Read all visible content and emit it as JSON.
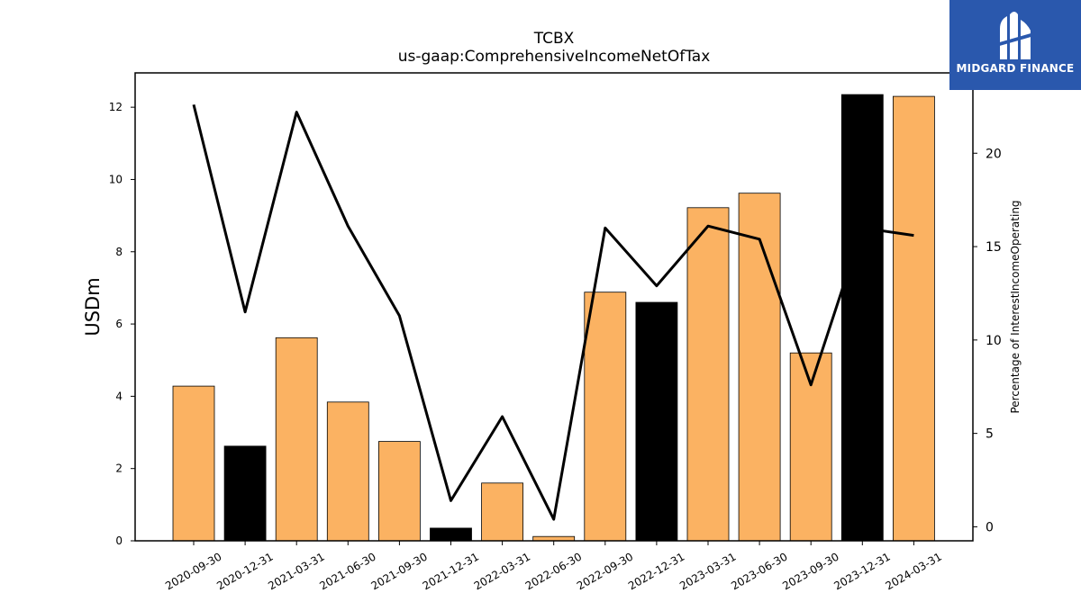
{
  "brand": {
    "name": "MIDGARD FINANCE",
    "bg_color": "#2a58ad",
    "icon": "midgard-logo-icon"
  },
  "chart_data": {
    "type": "bar",
    "title": "TCBX",
    "subtitle": "us-gaap:ComprehensiveIncomeNetOfTax",
    "ylabel": "USDm",
    "y2label": "Percentage of InterestIncomeOperating",
    "categories": [
      "2020-09-30",
      "2020-12-31",
      "2021-03-31",
      "2021-06-30",
      "2021-09-30",
      "2021-12-31",
      "2022-03-31",
      "2022-06-30",
      "2022-09-30",
      "2022-12-31",
      "2023-03-31",
      "2023-06-30",
      "2023-09-30",
      "2023-12-31",
      "2024-03-31"
    ],
    "series": [
      {
        "type": "bar",
        "axis": "left",
        "values": [
          4.28,
          2.62,
          5.62,
          3.84,
          2.75,
          0.35,
          1.6,
          0.12,
          6.88,
          6.6,
          9.22,
          9.62,
          5.2,
          12.35,
          12.3
        ],
        "colors": [
          "#fbb262",
          "#000000",
          "#fbb262",
          "#fbb262",
          "#fbb262",
          "#000000",
          "#fbb262",
          "#fbb262",
          "#fbb262",
          "#000000",
          "#fbb262",
          "#fbb262",
          "#fbb262",
          "#000000",
          "#fbb262"
        ]
      },
      {
        "type": "line",
        "axis": "right",
        "color": "#000000",
        "values": [
          22.6,
          11.5,
          22.2,
          16.1,
          11.3,
          1.4,
          5.9,
          0.4,
          16.0,
          12.9,
          16.1,
          15.4,
          7.6,
          16.0,
          15.6
        ]
      }
    ],
    "ylim": [
      0,
      12.95
    ],
    "yticks": [
      0,
      2,
      4,
      6,
      8,
      10,
      12
    ],
    "y2lim": [
      -0.75,
      24.3
    ],
    "y2ticks": [
      0,
      5,
      10,
      15,
      20
    ],
    "grid": false,
    "legend": "none"
  }
}
